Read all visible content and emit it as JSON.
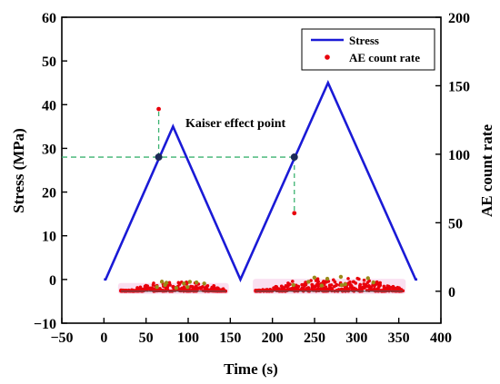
{
  "chart_data": {
    "type": "line",
    "x_axis": {
      "label": "Time (s)",
      "range": [
        -50,
        400
      ],
      "ticks": [
        -50,
        0,
        50,
        100,
        150,
        200,
        250,
        300,
        350,
        400
      ],
      "tick_labels": [
        "−50",
        "0",
        "50",
        "100",
        "150",
        "200",
        "250",
        "300",
        "350",
        "400"
      ]
    },
    "y_axis_left": {
      "label": "Stress (MPa)",
      "range": [
        -10,
        60
      ],
      "ticks": [
        -10,
        0,
        10,
        20,
        30,
        40,
        50,
        60
      ],
      "tick_labels": [
        "−10",
        "0",
        "10",
        "20",
        "30",
        "40",
        "50",
        "60"
      ]
    },
    "y_axis_right": {
      "label": "AE count rate",
      "range": [
        -23.3,
        200
      ],
      "ticks": [
        0,
        50,
        100,
        150,
        200
      ],
      "tick_labels": [
        "0",
        "50",
        "100",
        "150",
        "200"
      ]
    },
    "legend": {
      "position": "top-right",
      "entries": [
        {
          "label": "Stress",
          "marker": "line",
          "color": "#1a1ad6"
        },
        {
          "label": "AE count rate",
          "marker": "dot",
          "color": "#e8000b"
        }
      ]
    },
    "series": [
      {
        "name": "Stress",
        "axis": "left",
        "color": "#1a1ad6",
        "points": [
          [
            0,
            0
          ],
          [
            2,
            0
          ],
          [
            82,
            35
          ],
          [
            162,
            0
          ],
          [
            266,
            45
          ],
          [
            370,
            0
          ],
          [
            372,
            0
          ]
        ]
      },
      {
        "name": "AE count rate",
        "axis": "right",
        "color": "#e8000b",
        "spikes": [
          [
            65,
            133
          ],
          [
            226,
            57
          ]
        ],
        "clusters": [
          {
            "x_range": [
              20,
              145
            ],
            "base": 0,
            "peak_x": 90,
            "max": 8
          },
          {
            "x_range": [
              180,
              355
            ],
            "base": 0,
            "peak_x": 275,
            "max": 12
          }
        ]
      }
    ],
    "annotations": [
      {
        "text": "Kaiser effect point",
        "points": [
          [
            65,
            28
          ],
          [
            226,
            28
          ]
        ],
        "reference_line": {
          "y": 28,
          "x_from": -50,
          "x_to": 226
        }
      }
    ],
    "grid": false
  }
}
